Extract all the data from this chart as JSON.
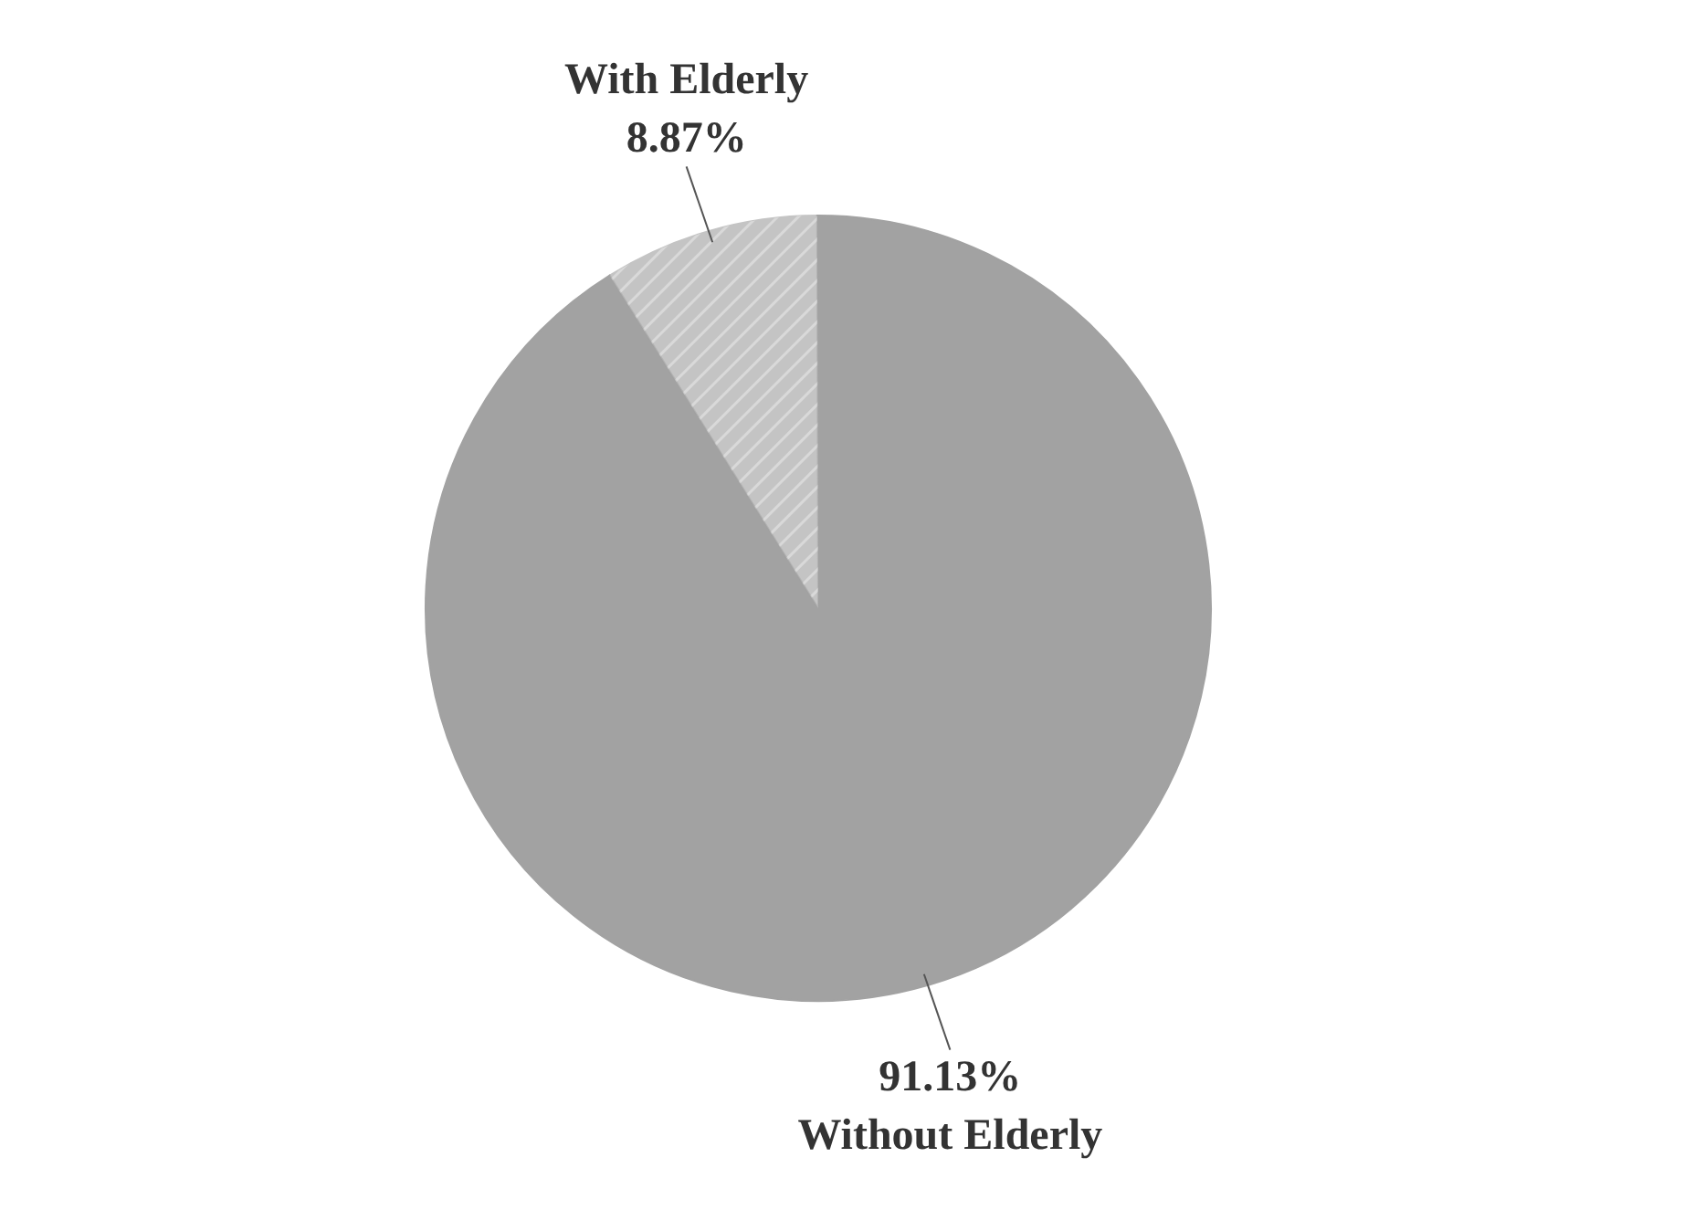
{
  "chart_data": {
    "type": "pie",
    "categories": [
      "With Elderly",
      "Without Elderly"
    ],
    "values": [
      8.87,
      91.13
    ],
    "colors": [
      "#c4c4c4",
      "#a2a2a2"
    ],
    "value_labels": [
      "8.87%",
      "91.13%"
    ]
  }
}
